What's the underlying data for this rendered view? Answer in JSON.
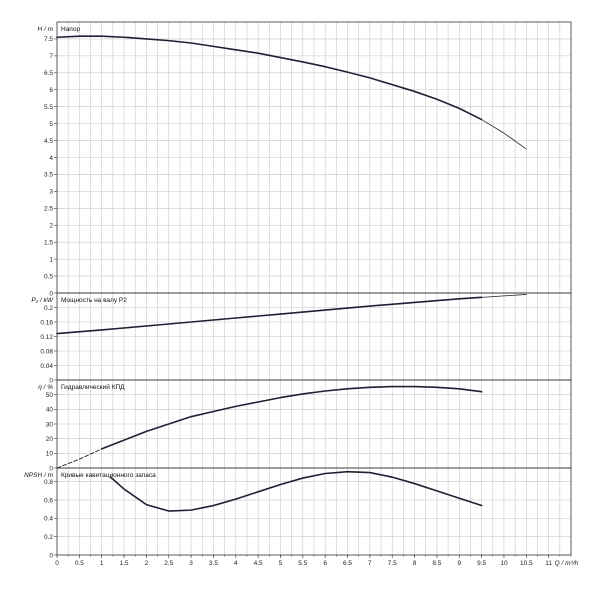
{
  "chart_data": {
    "type": "line",
    "x_axis": {
      "label": "Q / m³/h",
      "range": [
        0,
        11.5
      ],
      "ticks": [
        "0",
        "0.5",
        "1",
        "1.5",
        "2",
        "2.5",
        "3",
        "3.5",
        "4",
        "4.5",
        "5",
        "5.5",
        "6",
        "6.5",
        "7",
        "7.5",
        "8",
        "8.5",
        "9",
        "9.5",
        "10",
        "10.5",
        "11"
      ],
      "grid_step": 0.25
    },
    "panels": [
      {
        "id": "head",
        "ylabel": "H / m",
        "title": "Напор",
        "ylim": [
          0,
          8
        ],
        "yticks": [
          "0",
          "0.5",
          "1",
          "1.5",
          "2",
          "2.5",
          "3",
          "3.5",
          "4",
          "4.5",
          "5",
          "5.5",
          "6",
          "6.5",
          "7",
          "7.5"
        ],
        "ytick_values": [
          0,
          0.5,
          1,
          1.5,
          2,
          2.5,
          3,
          3.5,
          4,
          4.5,
          5,
          5.5,
          6,
          6.5,
          7,
          7.5
        ],
        "series": [
          {
            "x": [
              0,
              0.5,
              1,
              1.5,
              2,
              2.5,
              3,
              3.5,
              4,
              4.5,
              5,
              5.5,
              6,
              6.5,
              7,
              7.5,
              8,
              8.5,
              9,
              9.5
            ],
            "y": [
              7.55,
              7.58,
              7.58,
              7.55,
              7.5,
              7.45,
              7.38,
              7.28,
              7.18,
              7.08,
              6.95,
              6.82,
              6.68,
              6.52,
              6.35,
              6.15,
              5.95,
              5.72,
              5.45,
              5.12
            ]
          },
          {
            "x": [
              9.5,
              10,
              10.5
            ],
            "y": [
              5.12,
              4.72,
              4.25
            ],
            "thin": true
          }
        ]
      },
      {
        "id": "power",
        "ylabel": "P₂ / kW",
        "title": "Мощность на валу P2",
        "ylim": [
          0,
          0.24
        ],
        "yticks": [
          "0",
          "0.04",
          "0.08",
          "0.12",
          "0.16",
          "0.2"
        ],
        "ytick_values": [
          0,
          0.04,
          0.08,
          0.12,
          0.16,
          0.2
        ],
        "series": [
          {
            "x": [
              0,
              1,
              2,
              3,
              4,
              5,
              6,
              7,
              8,
              9,
              9.5
            ],
            "y": [
              0.128,
              0.138,
              0.149,
              0.16,
              0.171,
              0.182,
              0.193,
              0.204,
              0.214,
              0.224,
              0.228
            ]
          },
          {
            "x": [
              9.5,
              10,
              10.5
            ],
            "y": [
              0.228,
              0.232,
              0.236
            ],
            "thin": true
          }
        ]
      },
      {
        "id": "efficiency",
        "ylabel": "η / %",
        "title": "Гидравлический КПД",
        "ylim": [
          0,
          60
        ],
        "yticks": [
          "0",
          "10",
          "20",
          "30",
          "40",
          "50"
        ],
        "ytick_values": [
          0,
          10,
          20,
          30,
          40,
          50
        ],
        "series": [
          {
            "x": [
              0,
              0.5,
              1
            ],
            "y": [
              0,
              6,
              13
            ],
            "dashed": true
          },
          {
            "x": [
              1,
              1.5,
              2,
              2.5,
              3,
              3.5,
              4,
              4.5,
              5,
              5.5,
              6,
              6.5,
              7,
              7.5,
              8,
              8.5,
              9,
              9.5
            ],
            "y": [
              13,
              19,
              25,
              30,
              35,
              38.5,
              42,
              45,
              48,
              50.5,
              52.5,
              54,
              55,
              55.5,
              55.5,
              55,
              54,
              52
            ]
          }
        ]
      },
      {
        "id": "npsh",
        "ylabel": "NPSH / m",
        "title": "Кривые кавитационного запаса",
        "ylim": [
          0,
          0.95
        ],
        "yticks": [
          "0",
          "0.2",
          "0.4",
          "0.6",
          "0.8"
        ],
        "ytick_values": [
          0,
          0.2,
          0.4,
          0.6,
          0.8
        ],
        "series": [
          {
            "x": [
              1.2,
              1.5,
              2,
              2.5,
              3,
              3.5,
              4,
              4.5,
              5,
              5.5,
              6,
              6.5,
              7,
              7.5,
              8,
              8.5,
              9,
              9.5
            ],
            "y": [
              0.85,
              0.72,
              0.55,
              0.48,
              0.49,
              0.54,
              0.61,
              0.69,
              0.77,
              0.84,
              0.89,
              0.91,
              0.9,
              0.85,
              0.78,
              0.7,
              0.62,
              0.54
            ]
          }
        ]
      }
    ]
  }
}
